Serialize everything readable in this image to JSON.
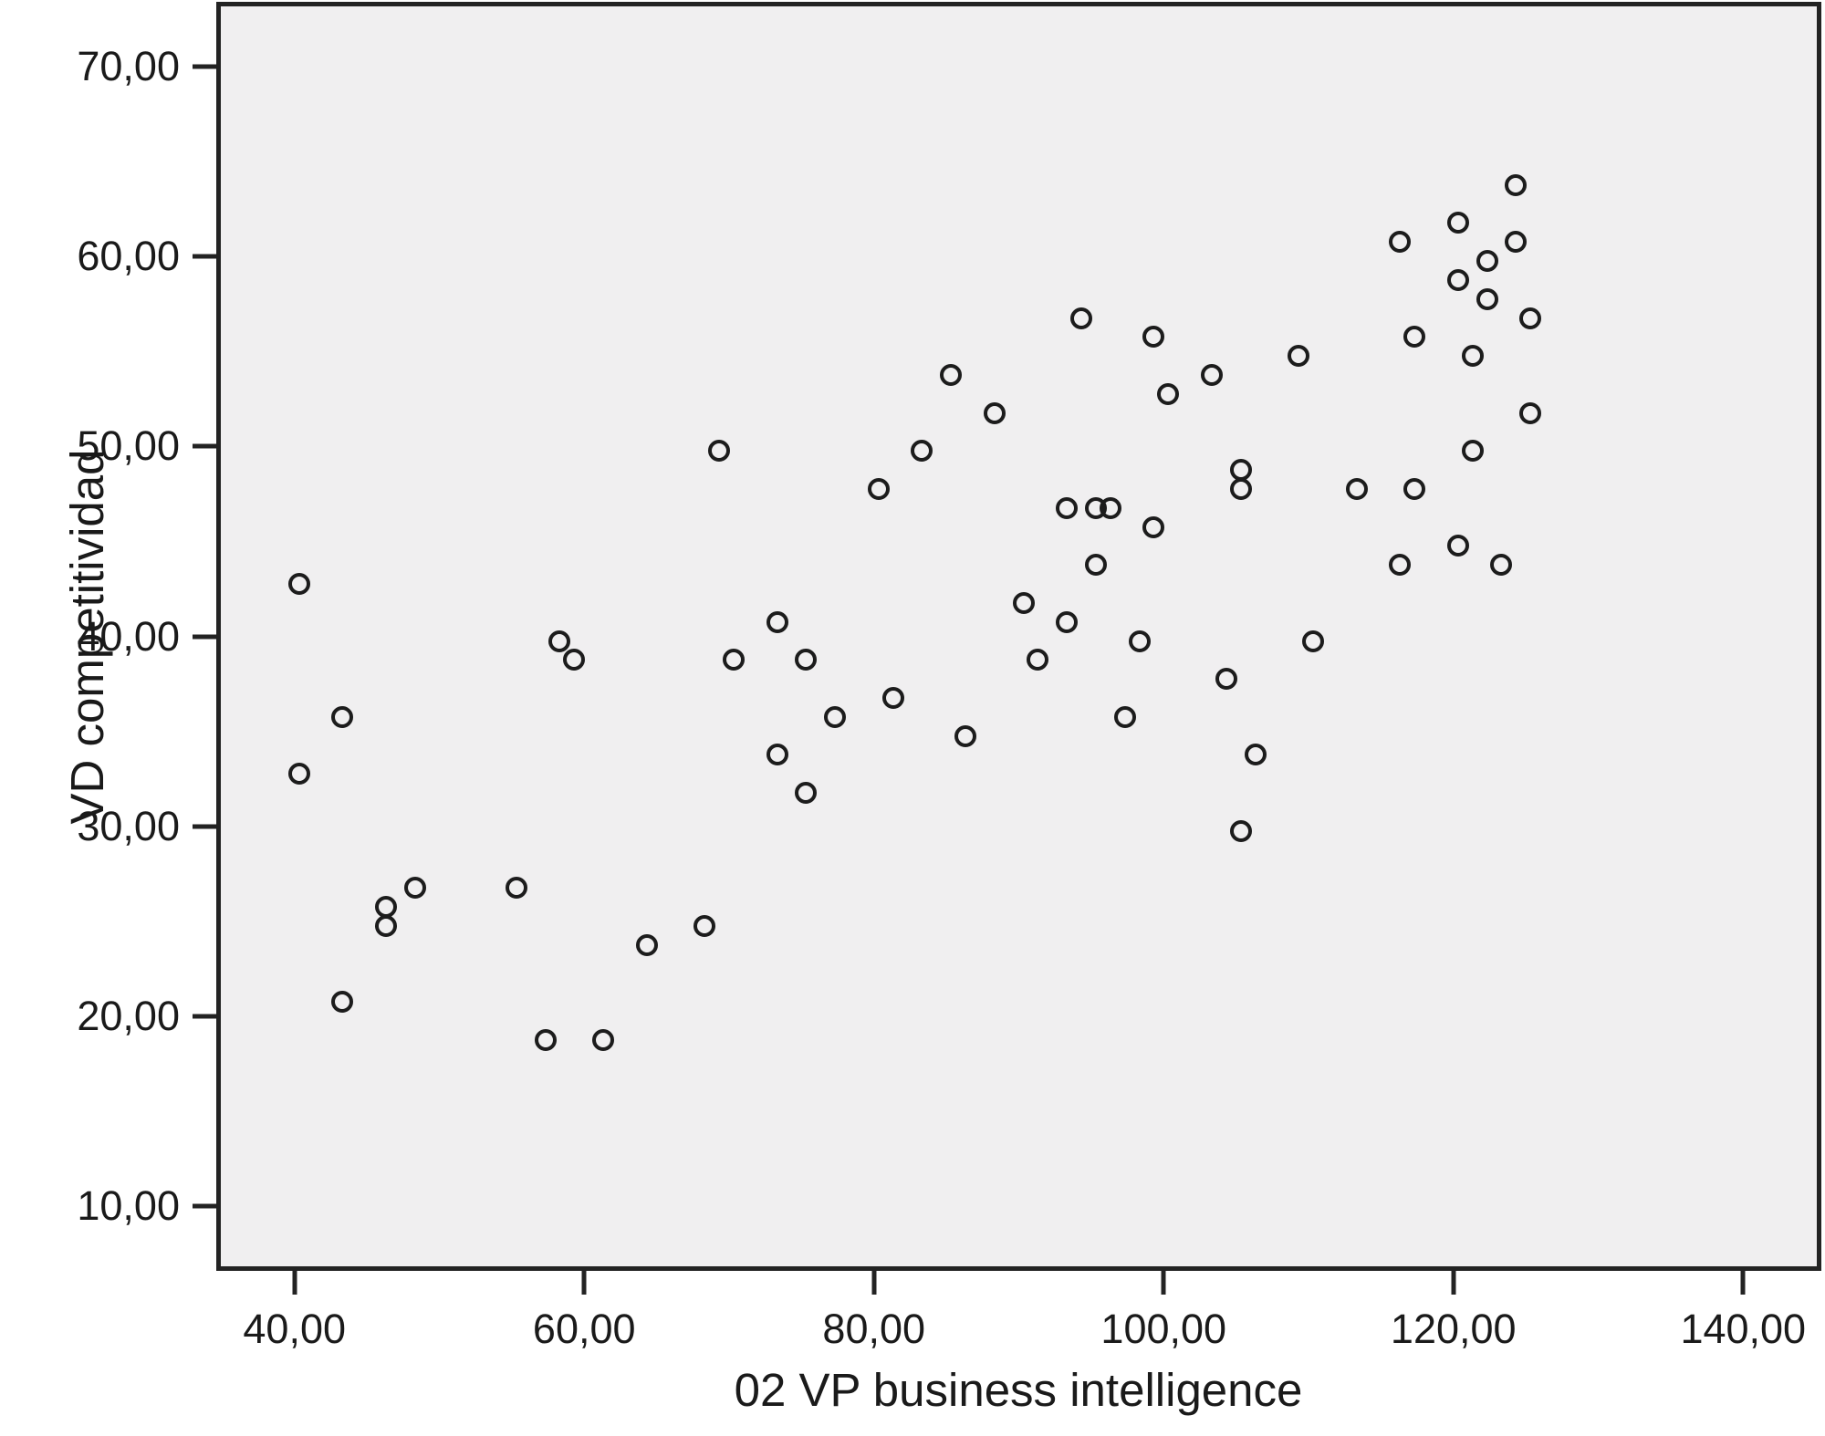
{
  "figure": {
    "background": "#ffffff",
    "plot_background": "#f0eff0",
    "frame_color": "#232323",
    "text_color": "#1a1a1a",
    "marker_color": "#1c1c1c",
    "marker_shape": "open-circle"
  },
  "chart_data": {
    "type": "scatter",
    "title": "",
    "xlabel": "02 VP business intelligence",
    "ylabel": "VD competitividad",
    "xlim": [
      34.6,
      145.4
    ],
    "ylim": [
      6.6,
      73.4
    ],
    "grid": false,
    "legend": false,
    "x_ticks": [
      {
        "value": 40,
        "label": "40,00"
      },
      {
        "value": 60,
        "label": "60,00"
      },
      {
        "value": 80,
        "label": "80,00"
      },
      {
        "value": 100,
        "label": "100,00"
      },
      {
        "value": 120,
        "label": "120,00"
      },
      {
        "value": 140,
        "label": "140,00"
      }
    ],
    "y_ticks": [
      {
        "value": 70,
        "label": "70,00"
      },
      {
        "value": 60,
        "label": "60,00"
      },
      {
        "value": 50,
        "label": "50,00"
      },
      {
        "value": 40,
        "label": "40,00"
      },
      {
        "value": 30,
        "label": "30,00"
      },
      {
        "value": 20,
        "label": "20,00"
      },
      {
        "value": 10,
        "label": "10,00"
      }
    ],
    "points": [
      [
        40,
        43
      ],
      [
        40,
        33
      ],
      [
        43,
        36
      ],
      [
        43,
        21
      ],
      [
        46,
        26
      ],
      [
        46,
        25
      ],
      [
        48,
        27
      ],
      [
        55,
        27
      ],
      [
        57,
        19
      ],
      [
        58,
        40
      ],
      [
        59,
        39
      ],
      [
        61,
        19
      ],
      [
        64,
        24
      ],
      [
        68,
        25
      ],
      [
        69,
        50
      ],
      [
        70,
        39
      ],
      [
        73,
        41
      ],
      [
        73,
        34
      ],
      [
        75,
        39
      ],
      [
        75,
        32
      ],
      [
        77,
        36
      ],
      [
        80,
        48
      ],
      [
        81,
        37
      ],
      [
        83,
        50
      ],
      [
        85,
        54
      ],
      [
        86,
        35
      ],
      [
        88,
        52
      ],
      [
        90,
        42
      ],
      [
        91,
        39
      ],
      [
        93,
        47
      ],
      [
        93,
        41
      ],
      [
        94,
        57
      ],
      [
        95,
        47
      ],
      [
        95,
        44
      ],
      [
        96,
        47
      ],
      [
        97,
        36
      ],
      [
        98,
        40
      ],
      [
        99,
        56
      ],
      [
        99,
        46
      ],
      [
        100,
        53
      ],
      [
        103,
        54
      ],
      [
        104,
        38
      ],
      [
        105,
        49
      ],
      [
        105,
        48
      ],
      [
        105,
        30
      ],
      [
        106,
        34
      ],
      [
        109,
        55
      ],
      [
        110,
        40
      ],
      [
        113,
        48
      ],
      [
        116,
        61
      ],
      [
        116,
        44
      ],
      [
        117,
        56
      ],
      [
        117,
        48
      ],
      [
        120,
        62
      ],
      [
        120,
        59
      ],
      [
        120,
        45
      ],
      [
        121,
        55
      ],
      [
        121,
        50
      ],
      [
        122,
        60
      ],
      [
        122,
        58
      ],
      [
        123,
        44
      ],
      [
        124,
        64
      ],
      [
        124,
        61
      ],
      [
        125,
        57
      ],
      [
        125,
        52
      ]
    ]
  }
}
